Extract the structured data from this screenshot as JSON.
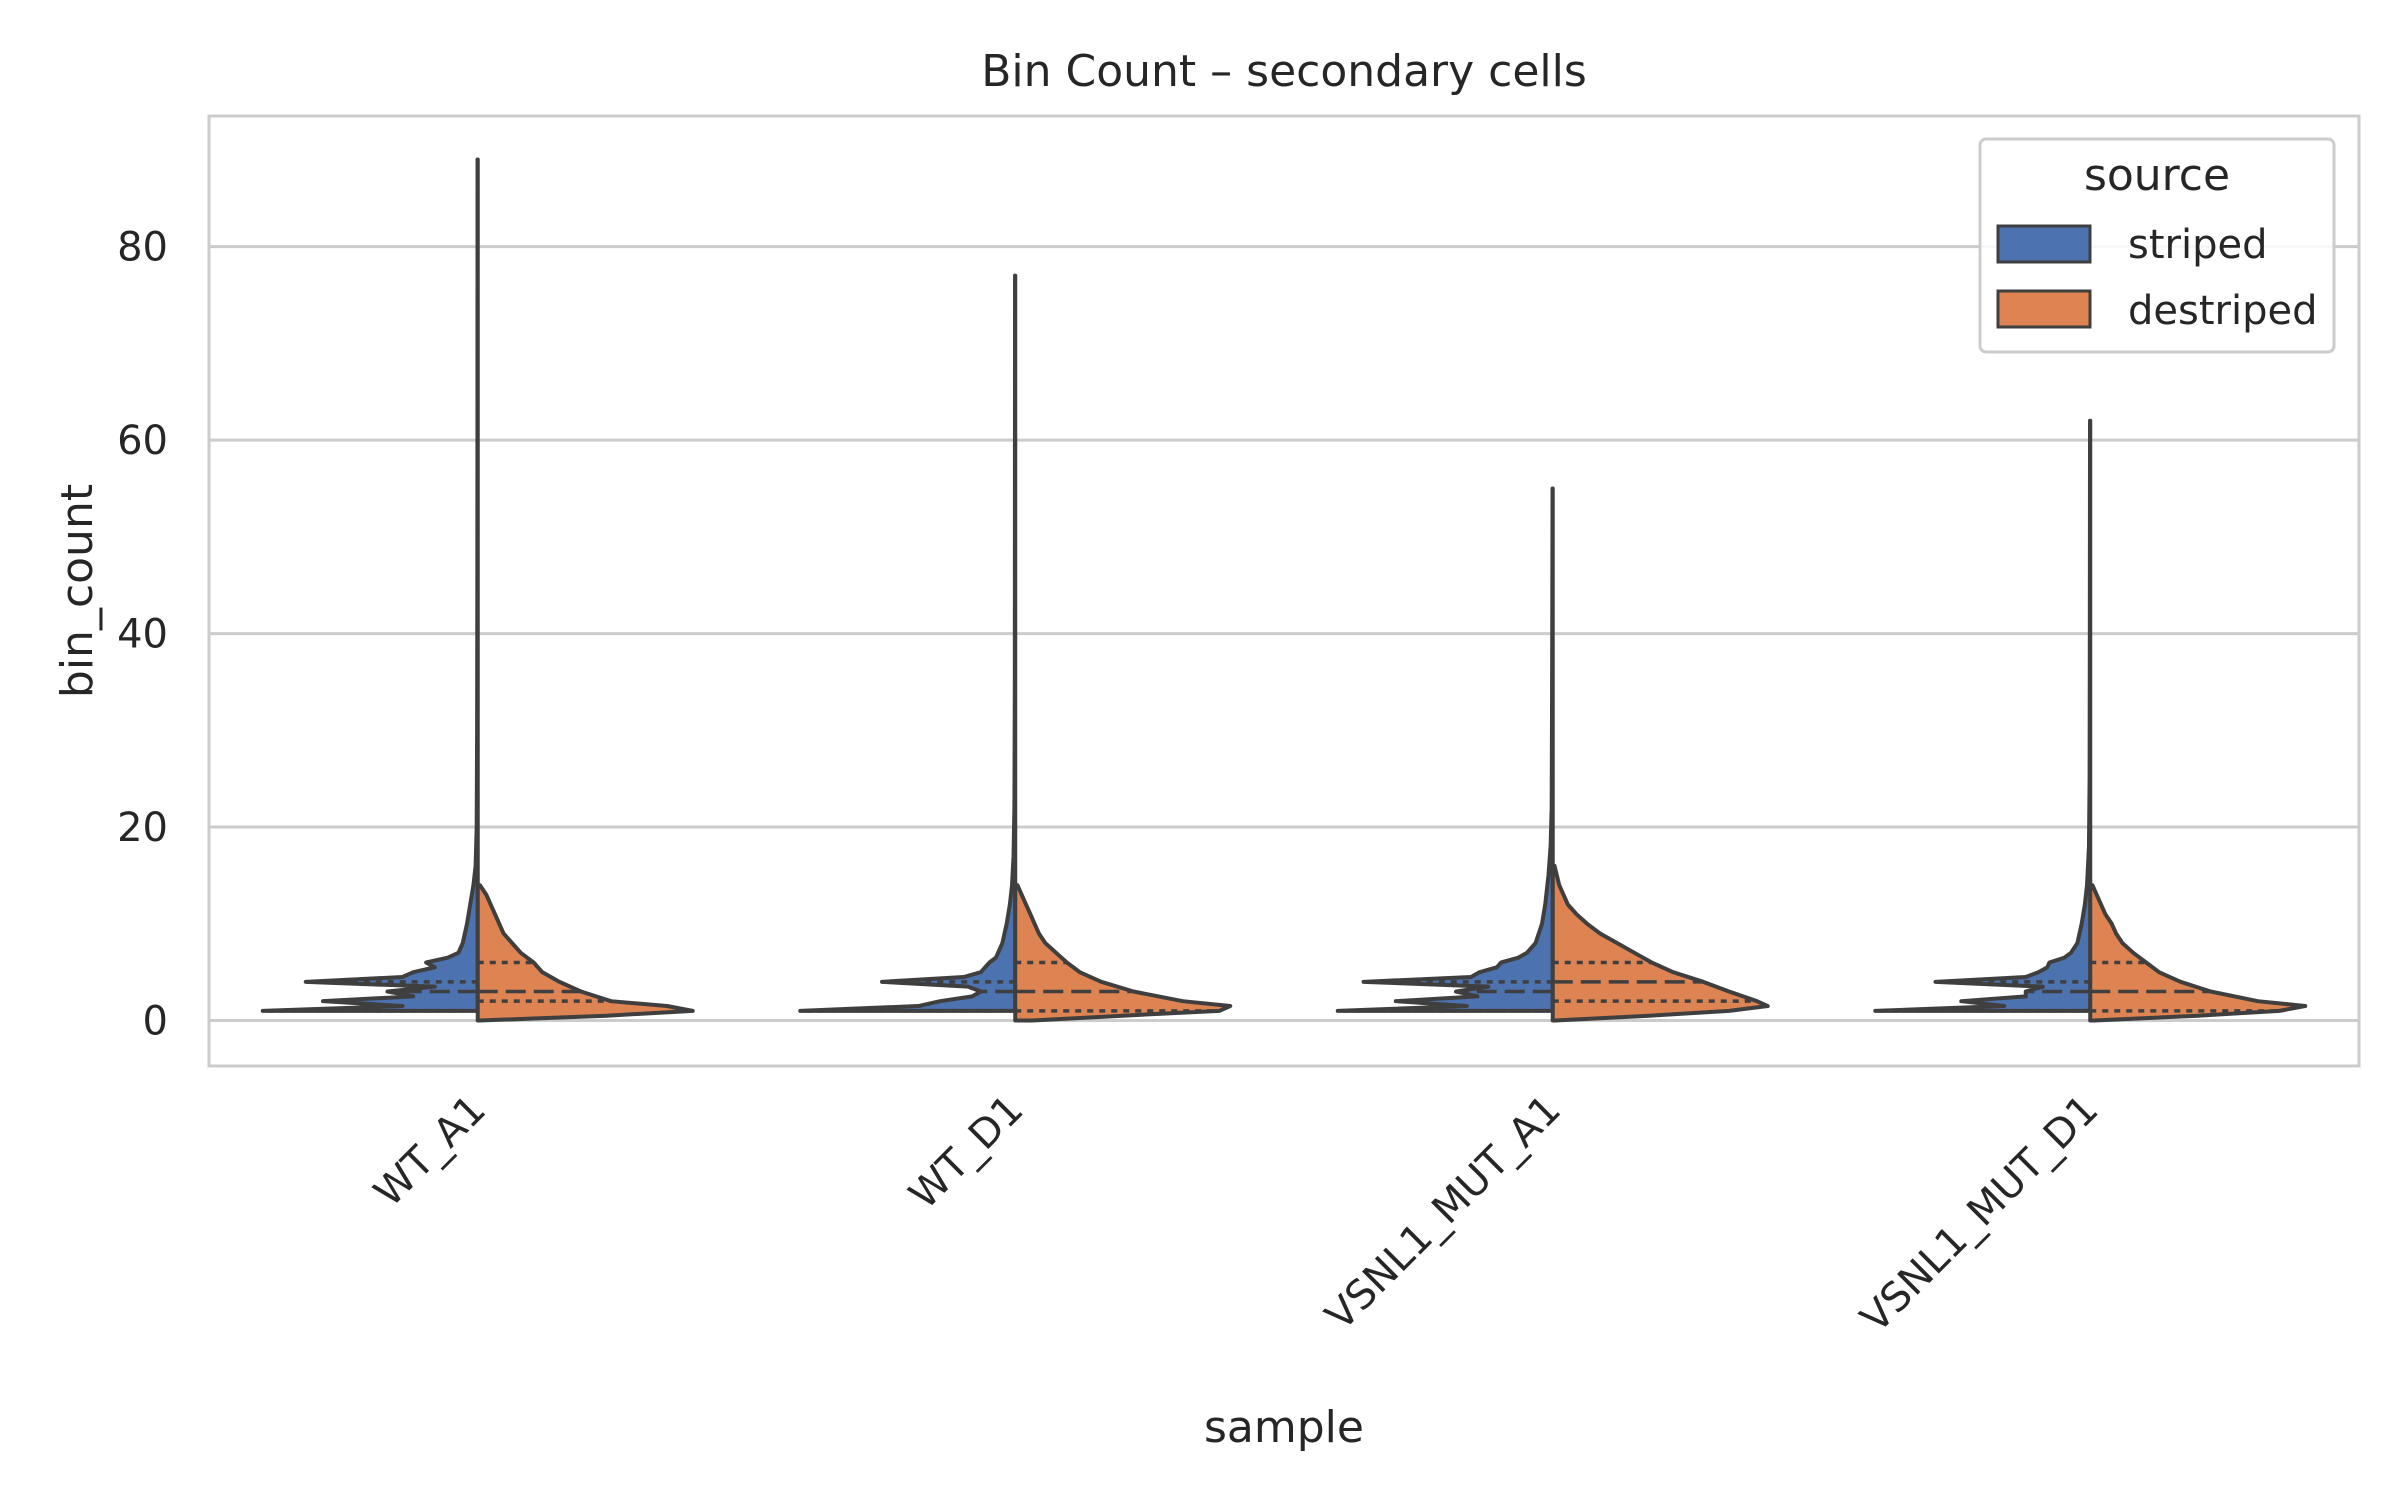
{
  "chart_data": {
    "type": "violin",
    "title": "Bin Count – secondary cells",
    "xlabel": "sample",
    "ylabel": "bin_count",
    "categories": [
      "WT_A1",
      "WT_D1",
      "VSNL1_MUT_A1",
      "VSNL1_MUT_D1"
    ],
    "ylim": [
      -4.7,
      93.5
    ],
    "yticks": [
      0,
      20,
      40,
      60,
      80
    ],
    "grid": true,
    "split": true,
    "inner": "quartile",
    "legend": {
      "title": "source",
      "position": "top-right",
      "entries": [
        {
          "label": "striped",
          "color": "#4c72b0"
        },
        {
          "label": "destriped",
          "color": "#dd8452"
        }
      ]
    },
    "series": [
      {
        "name": "striped",
        "color": "#4c72b0",
        "violins": [
          {
            "category": "WT_A1",
            "max": 89,
            "quartiles": [
              1,
              3,
              4
            ],
            "density": [
              [
                1,
                1.0
              ],
              [
                1.5,
                0.35
              ],
              [
                2,
                0.72
              ],
              [
                2.5,
                0.3
              ],
              [
                3,
                0.42
              ],
              [
                3.5,
                0.2
              ],
              [
                4,
                0.8
              ],
              [
                4.5,
                0.35
              ],
              [
                5,
                0.3
              ],
              [
                5.5,
                0.2
              ],
              [
                6,
                0.24
              ],
              [
                6.5,
                0.14
              ],
              [
                7,
                0.09
              ],
              [
                8,
                0.07
              ],
              [
                10,
                0.05
              ],
              [
                12,
                0.035
              ],
              [
                14,
                0.02
              ],
              [
                16,
                0.01
              ],
              [
                20,
                0.005
              ],
              [
                30,
                0.003
              ],
              [
                45,
                0.002
              ],
              [
                60,
                0.0015
              ],
              [
                89,
                0.001
              ]
            ]
          },
          {
            "category": "WT_D1",
            "max": 77,
            "quartiles": [
              1,
              3,
              4
            ],
            "density": [
              [
                1,
                1.0
              ],
              [
                1.5,
                0.45
              ],
              [
                2,
                0.35
              ],
              [
                2.5,
                0.2
              ],
              [
                3,
                0.16
              ],
              [
                3.5,
                0.22
              ],
              [
                4,
                0.62
              ],
              [
                4.5,
                0.24
              ],
              [
                5,
                0.16
              ],
              [
                6,
                0.12
              ],
              [
                6.5,
                0.09
              ],
              [
                8,
                0.06
              ],
              [
                10,
                0.04
              ],
              [
                12,
                0.025
              ],
              [
                14,
                0.015
              ],
              [
                17,
                0.008
              ],
              [
                22,
                0.004
              ],
              [
                35,
                0.002
              ],
              [
                55,
                0.0015
              ],
              [
                77,
                0.001
              ]
            ]
          },
          {
            "category": "VSNL1_MUT_A1",
            "max": 55,
            "quartiles": [
              1,
              3,
              4
            ],
            "density": [
              [
                1,
                1.0
              ],
              [
                1.5,
                0.4
              ],
              [
                2,
                0.73
              ],
              [
                2.5,
                0.35
              ],
              [
                3,
                0.45
              ],
              [
                3.5,
                0.3
              ],
              [
                4,
                0.88
              ],
              [
                4.5,
                0.38
              ],
              [
                5,
                0.34
              ],
              [
                5.5,
                0.26
              ],
              [
                6,
                0.24
              ],
              [
                6.5,
                0.16
              ],
              [
                7,
                0.12
              ],
              [
                8,
                0.08
              ],
              [
                10,
                0.05
              ],
              [
                12,
                0.035
              ],
              [
                15,
                0.02
              ],
              [
                18,
                0.01
              ],
              [
                22,
                0.005
              ],
              [
                35,
                0.003
              ],
              [
                55,
                0.001
              ]
            ]
          },
          {
            "category": "VSNL1_MUT_D1",
            "max": 62,
            "quartiles": [
              1,
              3,
              4
            ],
            "density": [
              [
                1,
                1.0
              ],
              [
                1.5,
                0.4
              ],
              [
                2,
                0.6
              ],
              [
                2.5,
                0.3
              ],
              [
                3,
                0.3
              ],
              [
                3.5,
                0.22
              ],
              [
                4,
                0.72
              ],
              [
                4.5,
                0.3
              ],
              [
                5,
                0.24
              ],
              [
                5.5,
                0.2
              ],
              [
                6,
                0.19
              ],
              [
                6.5,
                0.12
              ],
              [
                7,
                0.09
              ],
              [
                8,
                0.06
              ],
              [
                10,
                0.04
              ],
              [
                12,
                0.025
              ],
              [
                14,
                0.015
              ],
              [
                18,
                0.006
              ],
              [
                25,
                0.003
              ],
              [
                40,
                0.002
              ],
              [
                62,
                0.001
              ]
            ]
          }
        ]
      },
      {
        "name": "destriped",
        "color": "#dd8452",
        "violins": [
          {
            "category": "WT_A1",
            "max": 14,
            "quartiles": [
              2,
              3,
              6
            ],
            "density": [
              [
                0,
                0.01
              ],
              [
                0.5,
                0.6
              ],
              [
                1,
                1.0
              ],
              [
                1.5,
                0.88
              ],
              [
                2,
                0.62
              ],
              [
                3,
                0.48
              ],
              [
                4,
                0.38
              ],
              [
                5,
                0.3
              ],
              [
                6,
                0.26
              ],
              [
                7,
                0.2
              ],
              [
                8,
                0.16
              ],
              [
                9,
                0.12
              ],
              [
                10,
                0.1
              ],
              [
                11,
                0.08
              ],
              [
                12,
                0.06
              ],
              [
                13,
                0.04
              ],
              [
                14,
                0.01
              ]
            ]
          },
          {
            "category": "WT_D1",
            "max": 14,
            "quartiles": [
              1,
              3,
              6
            ],
            "density": [
              [
                0,
                0.08
              ],
              [
                0.5,
                0.5
              ],
              [
                1,
                0.95
              ],
              [
                1.5,
                1.0
              ],
              [
                2,
                0.78
              ],
              [
                3,
                0.55
              ],
              [
                4,
                0.4
              ],
              [
                5,
                0.3
              ],
              [
                6,
                0.24
              ],
              [
                7,
                0.19
              ],
              [
                8,
                0.14
              ],
              [
                9,
                0.11
              ],
              [
                10,
                0.09
              ],
              [
                11,
                0.07
              ],
              [
                12,
                0.05
              ],
              [
                13,
                0.03
              ],
              [
                14,
                0.01
              ]
            ]
          },
          {
            "category": "VSNL1_MUT_A1",
            "max": 16,
            "quartiles": [
              2,
              4,
              6
            ],
            "density": [
              [
                0,
                0.01
              ],
              [
                0.5,
                0.45
              ],
              [
                1,
                0.82
              ],
              [
                1.5,
                1.0
              ],
              [
                2,
                0.95
              ],
              [
                3,
                0.82
              ],
              [
                4,
                0.7
              ],
              [
                5,
                0.56
              ],
              [
                6,
                0.46
              ],
              [
                7,
                0.38
              ],
              [
                8,
                0.3
              ],
              [
                9,
                0.22
              ],
              [
                10,
                0.16
              ],
              [
                11,
                0.11
              ],
              [
                12,
                0.07
              ],
              [
                14,
                0.03
              ],
              [
                16,
                0.008
              ]
            ]
          },
          {
            "category": "VSNL1_MUT_D1",
            "max": 14,
            "quartiles": [
              1,
              3,
              6
            ],
            "density": [
              [
                0,
                0.02
              ],
              [
                0.5,
                0.5
              ],
              [
                1,
                0.88
              ],
              [
                1.5,
                1.0
              ],
              [
                2,
                0.78
              ],
              [
                3,
                0.56
              ],
              [
                4,
                0.42
              ],
              [
                5,
                0.32
              ],
              [
                6,
                0.26
              ],
              [
                7,
                0.2
              ],
              [
                8,
                0.15
              ],
              [
                9,
                0.12
              ],
              [
                10,
                0.1
              ],
              [
                11,
                0.07
              ],
              [
                12,
                0.05
              ],
              [
                13,
                0.03
              ],
              [
                14,
                0.01
              ]
            ]
          }
        ]
      }
    ]
  }
}
